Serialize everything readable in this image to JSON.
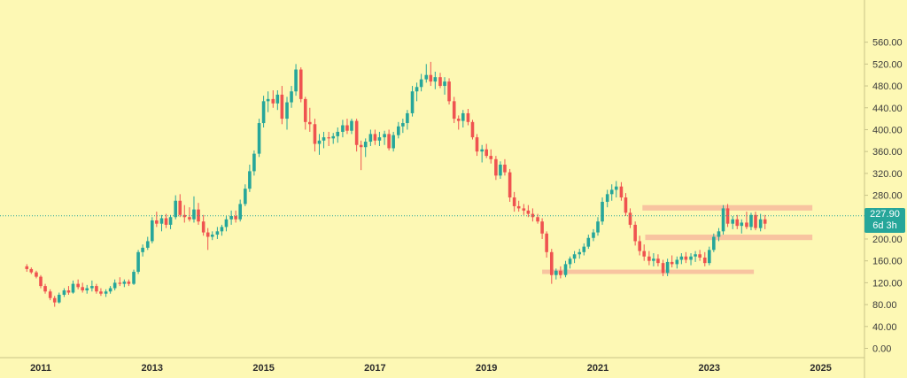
{
  "chart_data": {
    "type": "candlestick",
    "title": "",
    "xlabel": "",
    "ylabel": "",
    "ylim": [
      0,
      580
    ],
    "xlim": [
      2010.5,
      2025.6
    ],
    "y_ticks": [
      "560.00",
      "520.00",
      "480.00",
      "440.00",
      "400.00",
      "360.00",
      "320.00",
      "280.00",
      "240.00",
      "200.00",
      "160.00",
      "120.00",
      "80.00",
      "40.00",
      "0.00"
    ],
    "x_ticks": [
      "2011",
      "2013",
      "2015",
      "2017",
      "2019",
      "2021",
      "2023",
      "2025"
    ],
    "last_price": "227.90",
    "countdown": "6d 3h",
    "grid": false,
    "colors": {
      "up": "#26a69a",
      "down": "#ef5350",
      "zone": "#f6b39a",
      "background": "#fdf8b4",
      "price_line": "#26a69a"
    },
    "zones": [
      {
        "from": 2021.8,
        "to": 2024.85,
        "low": 252,
        "high": 262
      },
      {
        "from": 2021.85,
        "to": 2024.85,
        "low": 198,
        "high": 208
      },
      {
        "from": 2020.0,
        "to": 2023.8,
        "low": 136,
        "high": 144
      }
    ],
    "candles": [
      [
        2010.75,
        150,
        154,
        140,
        145
      ],
      [
        2010.83,
        145,
        148,
        136,
        139
      ],
      [
        2010.92,
        139,
        142,
        128,
        131
      ],
      [
        2011.0,
        131,
        134,
        110,
        114
      ],
      [
        2011.08,
        114,
        118,
        100,
        104
      ],
      [
        2011.17,
        104,
        108,
        88,
        92
      ],
      [
        2011.25,
        92,
        96,
        76,
        84
      ],
      [
        2011.33,
        84,
        102,
        82,
        98
      ],
      [
        2011.42,
        98,
        110,
        94,
        106
      ],
      [
        2011.5,
        106,
        114,
        98,
        102
      ],
      [
        2011.58,
        102,
        124,
        100,
        118
      ],
      [
        2011.67,
        118,
        126,
        108,
        112
      ],
      [
        2011.75,
        112,
        120,
        102,
        106
      ],
      [
        2011.83,
        106,
        116,
        100,
        110
      ],
      [
        2011.92,
        110,
        124,
        104,
        114
      ],
      [
        2012.0,
        114,
        118,
        100,
        104
      ],
      [
        2012.08,
        104,
        110,
        96,
        100
      ],
      [
        2012.17,
        100,
        108,
        94,
        104
      ],
      [
        2012.25,
        104,
        114,
        100,
        110
      ],
      [
        2012.33,
        110,
        126,
        106,
        120
      ],
      [
        2012.42,
        120,
        130,
        114,
        118
      ],
      [
        2012.5,
        118,
        126,
        112,
        122
      ],
      [
        2012.58,
        122,
        126,
        114,
        118
      ],
      [
        2012.67,
        118,
        144,
        116,
        140
      ],
      [
        2012.75,
        140,
        180,
        136,
        176
      ],
      [
        2012.83,
        176,
        190,
        168,
        184
      ],
      [
        2012.92,
        184,
        204,
        180,
        196
      ],
      [
        2013.0,
        196,
        240,
        192,
        234
      ],
      [
        2013.08,
        234,
        250,
        222,
        228
      ],
      [
        2013.17,
        228,
        244,
        214,
        238
      ],
      [
        2013.25,
        238,
        246,
        220,
        226
      ],
      [
        2013.33,
        226,
        244,
        218,
        240
      ],
      [
        2013.42,
        240,
        280,
        236,
        270
      ],
      [
        2013.5,
        270,
        282,
        240,
        244
      ],
      [
        2013.58,
        244,
        262,
        230,
        240
      ],
      [
        2013.67,
        240,
        258,
        232,
        236
      ],
      [
        2013.75,
        236,
        278,
        230,
        254
      ],
      [
        2013.83,
        254,
        266,
        226,
        232
      ],
      [
        2013.92,
        232,
        244,
        206,
        212
      ],
      [
        2014.0,
        212,
        220,
        180,
        204
      ],
      [
        2014.08,
        204,
        214,
        198,
        208
      ],
      [
        2014.17,
        208,
        222,
        200,
        214
      ],
      [
        2014.25,
        214,
        226,
        206,
        222
      ],
      [
        2014.33,
        222,
        242,
        214,
        236
      ],
      [
        2014.42,
        236,
        252,
        226,
        242
      ],
      [
        2014.5,
        242,
        252,
        230,
        236
      ],
      [
        2014.58,
        236,
        272,
        232,
        264
      ],
      [
        2014.67,
        264,
        300,
        260,
        292
      ],
      [
        2014.75,
        292,
        336,
        286,
        324
      ],
      [
        2014.83,
        324,
        362,
        316,
        356
      ],
      [
        2014.92,
        356,
        420,
        350,
        412
      ],
      [
        2015.0,
        412,
        462,
        404,
        452
      ],
      [
        2015.08,
        452,
        470,
        432,
        456
      ],
      [
        2015.17,
        456,
        472,
        440,
        448
      ],
      [
        2015.25,
        448,
        472,
        436,
        464
      ],
      [
        2015.33,
        464,
        480,
        410,
        420
      ],
      [
        2015.42,
        420,
        460,
        400,
        450
      ],
      [
        2015.5,
        450,
        480,
        440,
        470
      ],
      [
        2015.58,
        470,
        520,
        462,
        510
      ],
      [
        2015.67,
        510,
        514,
        450,
        456
      ],
      [
        2015.75,
        456,
        460,
        400,
        414
      ],
      [
        2015.83,
        414,
        440,
        396,
        410
      ],
      [
        2015.92,
        410,
        420,
        360,
        374
      ],
      [
        2016.0,
        374,
        392,
        354,
        380
      ],
      [
        2016.08,
        380,
        396,
        366,
        386
      ],
      [
        2016.17,
        386,
        396,
        370,
        384
      ],
      [
        2016.25,
        384,
        394,
        374,
        388
      ],
      [
        2016.33,
        388,
        404,
        376,
        396
      ],
      [
        2016.42,
        396,
        418,
        386,
        408
      ],
      [
        2016.5,
        408,
        420,
        392,
        398
      ],
      [
        2016.58,
        398,
        420,
        392,
        416
      ],
      [
        2016.67,
        416,
        420,
        360,
        372
      ],
      [
        2016.75,
        372,
        380,
        326,
        368
      ],
      [
        2016.83,
        368,
        384,
        350,
        378
      ],
      [
        2016.92,
        378,
        400,
        370,
        392
      ],
      [
        2017.0,
        392,
        400,
        372,
        380
      ],
      [
        2017.08,
        380,
        396,
        370,
        386
      ],
      [
        2017.17,
        386,
        398,
        372,
        392
      ],
      [
        2017.25,
        392,
        400,
        362,
        366
      ],
      [
        2017.33,
        366,
        396,
        360,
        390
      ],
      [
        2017.42,
        390,
        414,
        384,
        406
      ],
      [
        2017.5,
        406,
        420,
        394,
        412
      ],
      [
        2017.58,
        412,
        436,
        400,
        430
      ],
      [
        2017.67,
        430,
        480,
        424,
        470
      ],
      [
        2017.75,
        470,
        486,
        452,
        478
      ],
      [
        2017.83,
        478,
        502,
        470,
        492
      ],
      [
        2017.92,
        492,
        520,
        486,
        500
      ],
      [
        2018.0,
        500,
        524,
        480,
        488
      ],
      [
        2018.08,
        488,
        506,
        474,
        496
      ],
      [
        2018.17,
        496,
        504,
        476,
        480
      ],
      [
        2018.25,
        480,
        496,
        464,
        488
      ],
      [
        2018.33,
        488,
        494,
        446,
        452
      ],
      [
        2018.42,
        452,
        460,
        412,
        420
      ],
      [
        2018.5,
        420,
        426,
        400,
        416
      ],
      [
        2018.58,
        416,
        436,
        404,
        430
      ],
      [
        2018.67,
        430,
        438,
        408,
        414
      ],
      [
        2018.75,
        414,
        418,
        382,
        386
      ],
      [
        2018.83,
        386,
        392,
        352,
        360
      ],
      [
        2018.92,
        360,
        372,
        340,
        364
      ],
      [
        2019.0,
        364,
        374,
        348,
        352
      ],
      [
        2019.08,
        352,
        364,
        338,
        346
      ],
      [
        2019.17,
        346,
        352,
        308,
        316
      ],
      [
        2019.25,
        316,
        342,
        310,
        336
      ],
      [
        2019.33,
        336,
        346,
        316,
        322
      ],
      [
        2019.42,
        322,
        328,
        268,
        276
      ],
      [
        2019.5,
        276,
        286,
        250,
        260
      ],
      [
        2019.58,
        260,
        270,
        250,
        256
      ],
      [
        2019.67,
        256,
        264,
        244,
        252
      ],
      [
        2019.75,
        252,
        262,
        240,
        246
      ],
      [
        2019.83,
        246,
        256,
        232,
        240
      ],
      [
        2019.92,
        240,
        246,
        228,
        232
      ],
      [
        2020.0,
        232,
        238,
        200,
        210
      ],
      [
        2020.08,
        210,
        214,
        166,
        176
      ],
      [
        2020.17,
        176,
        182,
        118,
        134
      ],
      [
        2020.25,
        134,
        146,
        126,
        142
      ],
      [
        2020.33,
        142,
        150,
        128,
        134
      ],
      [
        2020.42,
        134,
        160,
        130,
        154
      ],
      [
        2020.5,
        154,
        168,
        146,
        164
      ],
      [
        2020.58,
        164,
        178,
        156,
        172
      ],
      [
        2020.67,
        172,
        182,
        164,
        176
      ],
      [
        2020.75,
        176,
        192,
        170,
        186
      ],
      [
        2020.83,
        186,
        208,
        182,
        202
      ],
      [
        2020.92,
        202,
        218,
        196,
        212
      ],
      [
        2021.0,
        212,
        240,
        206,
        232
      ],
      [
        2021.08,
        232,
        276,
        226,
        268
      ],
      [
        2021.17,
        268,
        290,
        258,
        282
      ],
      [
        2021.25,
        282,
        300,
        270,
        290
      ],
      [
        2021.33,
        290,
        306,
        276,
        296
      ],
      [
        2021.42,
        296,
        304,
        270,
        276
      ],
      [
        2021.5,
        276,
        284,
        242,
        248
      ],
      [
        2021.58,
        248,
        256,
        220,
        226
      ],
      [
        2021.67,
        226,
        232,
        188,
        196
      ],
      [
        2021.75,
        196,
        206,
        170,
        178
      ],
      [
        2021.83,
        178,
        190,
        160,
        168
      ],
      [
        2021.92,
        168,
        178,
        152,
        160
      ],
      [
        2022.0,
        160,
        174,
        150,
        164
      ],
      [
        2022.08,
        164,
        172,
        150,
        156
      ],
      [
        2022.17,
        156,
        162,
        132,
        138
      ],
      [
        2022.25,
        138,
        164,
        132,
        158
      ],
      [
        2022.33,
        158,
        170,
        148,
        154
      ],
      [
        2022.42,
        154,
        168,
        146,
        162
      ],
      [
        2022.5,
        162,
        174,
        154,
        168
      ],
      [
        2022.58,
        168,
        176,
        156,
        162
      ],
      [
        2022.67,
        162,
        174,
        152,
        168
      ],
      [
        2022.75,
        168,
        178,
        158,
        172
      ],
      [
        2022.83,
        172,
        180,
        160,
        166
      ],
      [
        2022.92,
        166,
        176,
        150,
        156
      ],
      [
        2023.0,
        156,
        186,
        152,
        180
      ],
      [
        2023.08,
        180,
        210,
        176,
        204
      ],
      [
        2023.17,
        204,
        220,
        196,
        214
      ],
      [
        2023.25,
        214,
        262,
        208,
        256
      ],
      [
        2023.33,
        256,
        264,
        222,
        228
      ],
      [
        2023.42,
        228,
        242,
        218,
        236
      ],
      [
        2023.5,
        236,
        244,
        218,
        224
      ],
      [
        2023.58,
        224,
        236,
        210,
        230
      ],
      [
        2023.67,
        230,
        250,
        218,
        222
      ],
      [
        2023.75,
        222,
        248,
        216,
        244
      ],
      [
        2023.83,
        244,
        250,
        216,
        220
      ],
      [
        2023.92,
        220,
        246,
        214,
        236
      ],
      [
        2024.0,
        236,
        244,
        218,
        228
      ]
    ]
  }
}
